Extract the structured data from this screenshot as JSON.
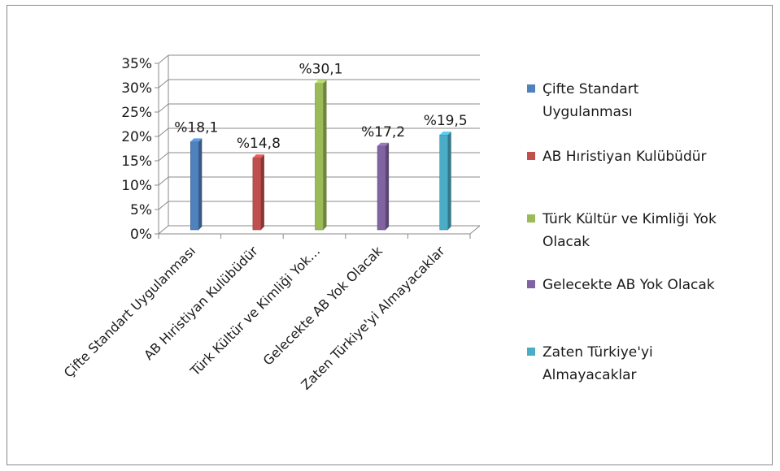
{
  "chart_data": {
    "type": "bar",
    "categories": [
      "Çifte Standart Uygulanması",
      "AB Hıristiyan Kulübüdür",
      "Türk Kültür ve Kimliği Yok…",
      "Gelecekte AB Yok Olacak",
      "Zaten Türkiye'yi Almayacaklar"
    ],
    "values": [
      18.1,
      14.8,
      30.1,
      17.2,
      19.5
    ],
    "data_labels": [
      "%18,1",
      "%14,8",
      "%30,1",
      "%17,2",
      "%19,5"
    ],
    "y_ticks": [
      "0%",
      "5%",
      "10%",
      "15%",
      "20%",
      "25%",
      "30%",
      "35%"
    ],
    "ylim": [
      0,
      35
    ],
    "grid": true,
    "legend_position": "right",
    "legend": [
      {
        "lines": [
          "Çifte Standart",
          "Uygulanması"
        ],
        "color": "#4f81bd"
      },
      {
        "lines": [
          "AB Hıristiyan Kulübüdür"
        ],
        "color": "#c0504d"
      },
      {
        "lines": [
          "Türk Kültür ve Kimliği Yok",
          "Olacak"
        ],
        "color": "#9bbb59"
      },
      {
        "lines": [
          "Gelecekte AB Yok Olacak"
        ],
        "color": "#8064a2"
      },
      {
        "lines": [
          "Zaten Türkiye'yi",
          "Almayacaklar"
        ],
        "color": "#4bacc6"
      }
    ],
    "colors": [
      "#4f81bd",
      "#c0504d",
      "#9bbb59",
      "#8064a2",
      "#4bacc6"
    ]
  }
}
